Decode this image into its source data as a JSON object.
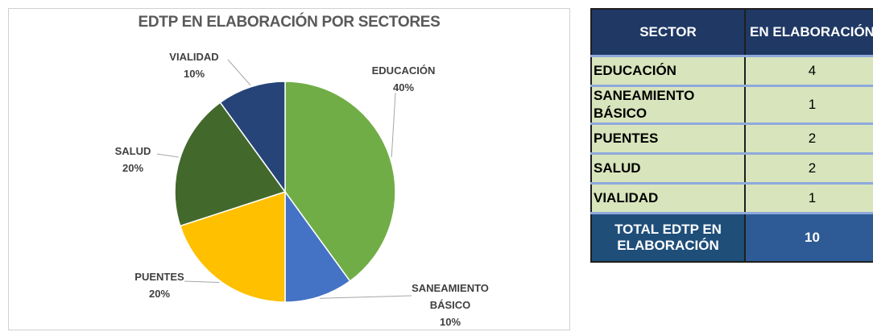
{
  "chart_data": {
    "type": "pie",
    "title": "EDTP EN ELABORACIÓN POR SECTORES",
    "categories": [
      "EDUCACIÓN",
      "SANEAMIENTO BÁSICO",
      "PUENTES",
      "SALUD",
      "VIALIDAD"
    ],
    "values": [
      40,
      10,
      20,
      20,
      10
    ],
    "value_labels": [
      "40%",
      "10%",
      "20%",
      "20%",
      "10%"
    ],
    "colors": [
      "#70ad47",
      "#4472c4",
      "#ffc000",
      "#43682b",
      "#264478"
    ]
  },
  "table": {
    "header": [
      "SECTOR",
      "EN ELABORACIÓN"
    ],
    "rows": [
      [
        "EDUCACIÓN",
        "4"
      ],
      [
        "SANEAMIENTO BÁSICO",
        "1"
      ],
      [
        "PUENTES",
        "2"
      ],
      [
        "SALUD",
        "2"
      ],
      [
        "VIALIDAD",
        "1"
      ]
    ],
    "total": [
      "TOTAL EDTP EN ELABORACIÓN",
      "10"
    ]
  }
}
